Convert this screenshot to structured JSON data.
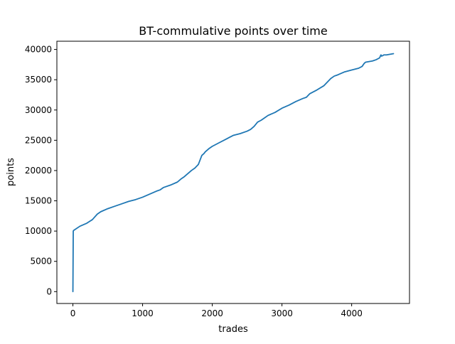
{
  "chart_data": {
    "type": "line",
    "title": "BT-commulative points over time",
    "xlabel": "trades",
    "ylabel": "points",
    "xlim": [
      -230,
      4830
    ],
    "ylim": [
      -1960,
      41360
    ],
    "x_ticks": [
      {
        "value": 0,
        "label": "0"
      },
      {
        "value": 1000,
        "label": "1000"
      },
      {
        "value": 2000,
        "label": "2000"
      },
      {
        "value": 3000,
        "label": "3000"
      },
      {
        "value": 4000,
        "label": "4000"
      }
    ],
    "y_ticks": [
      {
        "value": 0,
        "label": "0"
      },
      {
        "value": 5000,
        "label": "5000"
      },
      {
        "value": 10000,
        "label": "10000"
      },
      {
        "value": 15000,
        "label": "15000"
      },
      {
        "value": 20000,
        "label": "20000"
      },
      {
        "value": 25000,
        "label": "25000"
      },
      {
        "value": 30000,
        "label": "30000"
      },
      {
        "value": 35000,
        "label": "35000"
      },
      {
        "value": 40000,
        "label": "40000"
      }
    ],
    "grid": false,
    "legend": "none",
    "series": [
      {
        "color": "#1f77b4",
        "x": [
          0,
          5,
          10,
          100,
          200,
          280,
          350,
          400,
          500,
          600,
          700,
          800,
          900,
          1000,
          1100,
          1200,
          1250,
          1300,
          1400,
          1500,
          1550,
          1600,
          1700,
          1750,
          1800,
          1850,
          1880,
          1900,
          1950,
          2000,
          2100,
          2200,
          2250,
          2300,
          2400,
          2500,
          2550,
          2600,
          2650,
          2700,
          2750,
          2800,
          2900,
          3000,
          3100,
          3200,
          3300,
          3350,
          3400,
          3500,
          3600,
          3650,
          3700,
          3750,
          3800,
          3900,
          4000,
          4100,
          4150,
          4180,
          4200,
          4250,
          4300,
          4350,
          4400,
          4420,
          4430,
          4450,
          4460,
          4480,
          4500,
          4550,
          4600
        ],
        "y": [
          0,
          10000,
          10100,
          10800,
          11300,
          11900,
          12800,
          13200,
          13700,
          14100,
          14500,
          14900,
          15200,
          15600,
          16100,
          16600,
          16800,
          17200,
          17600,
          18100,
          18600,
          19000,
          20000,
          20400,
          21000,
          22500,
          22800,
          23100,
          23600,
          24000,
          24600,
          25200,
          25500,
          25800,
          26100,
          26500,
          26800,
          27300,
          28000,
          28300,
          28700,
          29100,
          29600,
          30300,
          30800,
          31400,
          31900,
          32100,
          32700,
          33300,
          34000,
          34600,
          35200,
          35600,
          35800,
          36300,
          36600,
          36900,
          37200,
          37700,
          37900,
          38000,
          38100,
          38300,
          38600,
          39100,
          38900,
          39000,
          39100,
          39100,
          39100,
          39200,
          39300
        ]
      }
    ]
  }
}
